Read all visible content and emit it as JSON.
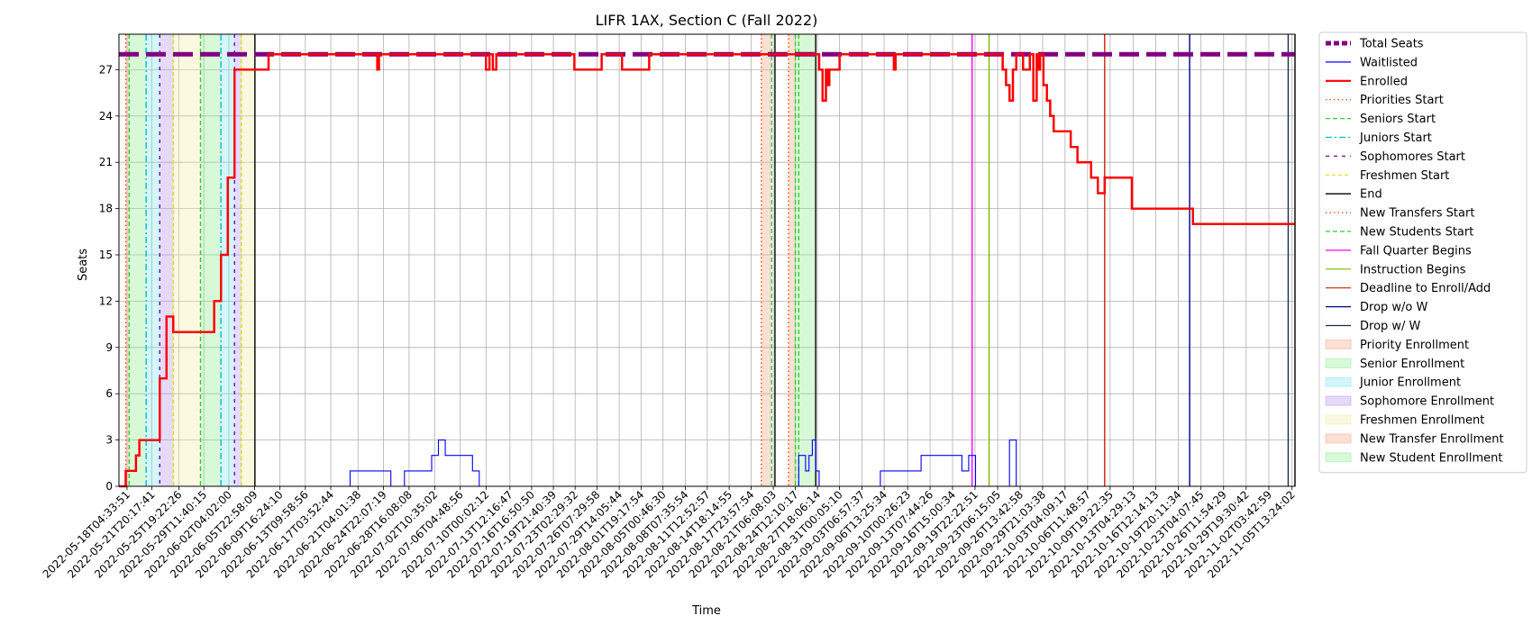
{
  "colors": {
    "total_seats": "#800080",
    "waitlisted": "#0000ff",
    "enrolled": "#ff0000",
    "priorities_start": "#ff4500",
    "seniors_start": "#32cd32",
    "juniors_start": "#00bcd4",
    "sophomores_start": "#6a0dad",
    "freshmen_start": "#dddd00",
    "end": "#000000",
    "new_transfers_start": "#ff4500",
    "new_students_start": "#32cd32",
    "fall_quarter_begins": "#ff00ff",
    "instruction_begins": "#7cba00",
    "deadline": "#cc2200",
    "drop_wo_w": "#000080",
    "drop_w_w": "#1a2a4a",
    "priority_enrollment": "#f4a582",
    "senior_enrollment": "#90ee90",
    "junior_enrollment": "#7fe5f0",
    "sophomore_enrollment": "#b794f4",
    "freshmen_enrollment": "#f0eca0",
    "new_transfer_enrollment": "#f4a582",
    "new_student_enrollment": "#90ee90"
  },
  "chart_data": {
    "type": "line",
    "title": "LIFR 1AX, Section C (Fall 2022)",
    "xlabel": "Time",
    "ylabel": "Seats",
    "x_range": [
      "2022-05-17T00:00",
      "2022-11-06T00:00"
    ],
    "ylim": [
      0,
      29.3
    ],
    "yticks": [
      0,
      3,
      6,
      9,
      12,
      15,
      18,
      21,
      24,
      27
    ],
    "grid": true,
    "legend_position": "outside-right",
    "xticks": [
      "2022-05-18T04:33:51",
      "2022-05-21T20:17:41",
      "2022-05-25T19:22:26",
      "2022-05-29T11:40:15",
      "2022-06-02T04:02:00",
      "2022-06-05T22:58:09",
      "2022-06-09T16:24:10",
      "2022-06-13T09:58:56",
      "2022-06-17T03:52:44",
      "2022-06-21T04:01:38",
      "2022-06-24T22:07:19",
      "2022-06-28T16:08:08",
      "2022-07-02T10:35:02",
      "2022-07-06T04:48:56",
      "2022-07-10T00:02:12",
      "2022-07-13T12:16:47",
      "2022-07-16T16:50:50",
      "2022-07-19T21:40:39",
      "2022-07-23T02:29:32",
      "2022-07-26T07:29:58",
      "2022-07-29T14:05:44",
      "2022-08-01T19:17:54",
      "2022-08-05T00:46:30",
      "2022-08-08T07:35:54",
      "2022-08-11T12:52:57",
      "2022-08-14T18:14:55",
      "2022-08-17T23:57:54",
      "2022-08-21T06:08:03",
      "2022-08-24T12:10:17",
      "2022-08-27T18:06:14",
      "2022-08-31T00:05:10",
      "2022-09-03T06:57:37",
      "2022-09-06T13:25:34",
      "2022-09-10T00:26:23",
      "2022-09-13T07:44:26",
      "2022-09-16T15:00:34",
      "2022-09-19T22:22:51",
      "2022-09-23T06:15:05",
      "2022-09-26T13:42:58",
      "2022-09-29T21:03:38",
      "2022-10-03T04:09:17",
      "2022-10-06T11:48:57",
      "2022-10-09T19:22:35",
      "2022-10-13T04:29:13",
      "2022-10-16T12:14:13",
      "2022-10-19T20:11:34",
      "2022-10-23T04:07:45",
      "2022-10-26T11:54:29",
      "2022-10-29T19:30:42",
      "2022-11-02T03:42:59",
      "2022-11-05T13:24:02"
    ],
    "series": [
      {
        "name": "Total Seats",
        "style": "dashed-thick",
        "color_key": "total_seats",
        "x": [
          "2022-05-17T00:00",
          "2022-11-06T00:00"
        ],
        "y": [
          28,
          28
        ]
      },
      {
        "name": "Waitlisted",
        "style": "solid-thin-step",
        "color_key": "waitlisted",
        "x": [
          "2022-05-17T00:00",
          "2022-06-20T00:00",
          "2022-06-20T00:00",
          "2022-06-26T00:00",
          "2022-06-26T00:00",
          "2022-06-28T00:00",
          "2022-06-28T00:00",
          "2022-07-02T00:00",
          "2022-07-02T00:00",
          "2022-07-03T00:00",
          "2022-07-03T00:00",
          "2022-07-04T00:00",
          "2022-07-04T00:00",
          "2022-07-08T00:00",
          "2022-07-08T00:00",
          "2022-07-09T00:00",
          "2022-07-09T00:00",
          "2022-08-19T00:00",
          "2022-08-19T00:00",
          "2022-08-25T00:00",
          "2022-08-25T00:00",
          "2022-08-26T00:00",
          "2022-08-26T00:00",
          "2022-08-26T12:00",
          "2022-08-26T12:00",
          "2022-08-27T00:00",
          "2022-08-27T00:00",
          "2022-08-27T12:00",
          "2022-08-27T12:00",
          "2022-08-28T00:00",
          "2022-08-28T00:00",
          "2022-08-28T06:00",
          "2022-08-28T06:00",
          "2022-09-06T00:00",
          "2022-09-06T00:00",
          "2022-09-11T00:00",
          "2022-09-11T00:00",
          "2022-09-12T00:00",
          "2022-09-12T00:00",
          "2022-09-18T00:00",
          "2022-09-18T00:00",
          "2022-09-19T00:00",
          "2022-09-19T00:00",
          "2022-09-20T00:00",
          "2022-09-20T00:00",
          "2022-09-25T00:00",
          "2022-09-25T00:00",
          "2022-09-26T00:00",
          "2022-09-26T00:00",
          "2022-11-06T00:00"
        ],
        "y": [
          0,
          0,
          1,
          1,
          0,
          0,
          1,
          1,
          2,
          2,
          3,
          3,
          2,
          2,
          1,
          1,
          0,
          0,
          0,
          0,
          2,
          2,
          1,
          1,
          2,
          2,
          3,
          3,
          1,
          1,
          0,
          0,
          0,
          0,
          1,
          1,
          1,
          1,
          2,
          2,
          1,
          1,
          2,
          2,
          0,
          0,
          3,
          3,
          0,
          0
        ]
      },
      {
        "name": "Enrolled",
        "style": "solid-thick-step",
        "color_key": "enrolled",
        "x": [
          "2022-05-17T00:00",
          "2022-05-18T00:00",
          "2022-05-18T00:00",
          "2022-05-19T12:00",
          "2022-05-19T12:00",
          "2022-05-20T00:00",
          "2022-05-20T00:00",
          "2022-05-21T00:00",
          "2022-05-21T00:00",
          "2022-05-22T00:00",
          "2022-05-22T00:00",
          "2022-05-23T00:00",
          "2022-05-23T00:00",
          "2022-05-24T00:00",
          "2022-05-24T00:00",
          "2022-05-25T00:00",
          "2022-05-25T00:00",
          "2022-05-30T00:00",
          "2022-05-30T00:00",
          "2022-05-31T00:00",
          "2022-05-31T00:00",
          "2022-06-01T00:00",
          "2022-06-01T00:00",
          "2022-06-02T00:00",
          "2022-06-02T00:00",
          "2022-06-03T00:00",
          "2022-06-03T00:00",
          "2022-06-08T00:00",
          "2022-06-08T00:00",
          "2022-06-24T00:00",
          "2022-06-24T00:00",
          "2022-06-24T06:00",
          "2022-06-24T06:00",
          "2022-07-10T00:00",
          "2022-07-10T00:00",
          "2022-07-10T12:00",
          "2022-07-10T12:00",
          "2022-07-11T00:00",
          "2022-07-11T00:00",
          "2022-07-11T12:00",
          "2022-07-11T12:00",
          "2022-07-23T00:00",
          "2022-07-23T00:00",
          "2022-07-27T00:00",
          "2022-07-27T00:00",
          "2022-07-30T00:00",
          "2022-07-30T00:00",
          "2022-08-03T00:00",
          "2022-08-03T00:00",
          "2022-08-28T00:00",
          "2022-08-28T00:00",
          "2022-08-28T12:00",
          "2022-08-28T12:00",
          "2022-08-29T00:00",
          "2022-08-29T00:00",
          "2022-08-29T06:00",
          "2022-08-29T06:00",
          "2022-08-29T12:00",
          "2022-08-29T12:00",
          "2022-08-31T00:00",
          "2022-08-31T00:00",
          "2022-09-08T00:00",
          "2022-09-08T00:00",
          "2022-09-08T06:00",
          "2022-09-08T06:00",
          "2022-09-24T00:00",
          "2022-09-24T00:00",
          "2022-09-24T12:00",
          "2022-09-24T12:00",
          "2022-09-25T00:00",
          "2022-09-25T00:00",
          "2022-09-25T12:00",
          "2022-09-25T12:00",
          "2022-09-26T00:00",
          "2022-09-26T00:00",
          "2022-09-27T00:00",
          "2022-09-27T00:00",
          "2022-09-28T00:00",
          "2022-09-28T00:00",
          "2022-09-28T12:00",
          "2022-09-28T12:00",
          "2022-09-29T00:00",
          "2022-09-29T00:00",
          "2022-09-29T06:00",
          "2022-09-29T06:00",
          "2022-09-29T12:00",
          "2022-09-29T12:00",
          "2022-09-30T00:00",
          "2022-09-30T00:00",
          "2022-09-30T12:00",
          "2022-09-30T12:00",
          "2022-10-01T00:00",
          "2022-10-01T00:00",
          "2022-10-01T12:00",
          "2022-10-01T12:00",
          "2022-10-04T00:00",
          "2022-10-04T00:00",
          "2022-10-05T00:00",
          "2022-10-05T00:00",
          "2022-10-07T00:00",
          "2022-10-07T00:00",
          "2022-10-08T00:00",
          "2022-10-08T00:00",
          "2022-10-09T00:00",
          "2022-10-09T00:00",
          "2022-10-13T00:00",
          "2022-10-13T00:00",
          "2022-10-22T00:00",
          "2022-10-22T00:00",
          "2022-11-06T00:00"
        ],
        "y": [
          0,
          0,
          1,
          1,
          2,
          2,
          3,
          3,
          3,
          3,
          3,
          3,
          7,
          7,
          11,
          11,
          10,
          10,
          10,
          10,
          12,
          12,
          15,
          15,
          20,
          20,
          27,
          27,
          28,
          28,
          27,
          27,
          28,
          28,
          27,
          27,
          28,
          28,
          27,
          27,
          28,
          28,
          27,
          27,
          28,
          28,
          27,
          27,
          28,
          28,
          27,
          27,
          25,
          25,
          27,
          27,
          26,
          26,
          27,
          27,
          28,
          28,
          27,
          27,
          28,
          28,
          27,
          27,
          26,
          26,
          25,
          25,
          27,
          27,
          28,
          28,
          27,
          27,
          28,
          28,
          25,
          25,
          28,
          28,
          27,
          27,
          28,
          28,
          26,
          26,
          25,
          25,
          24,
          24,
          23,
          23,
          22,
          22,
          21,
          21,
          20,
          20,
          19,
          19,
          20,
          20,
          18,
          18,
          17,
          17
        ]
      }
    ],
    "vlines": [
      {
        "name": "Priorities Start",
        "color_key": "priorities_start",
        "dash": "1.5,3",
        "at": [
          "2022-05-18T00:00",
          "2022-08-19T12:00"
        ]
      },
      {
        "name": "Seniors Start",
        "color_key": "seniors_start",
        "dash": "5,3",
        "at": [
          "2022-05-18T12:00",
          "2022-05-29T00:00",
          "2022-08-21T00:00",
          "2022-08-25T00:00"
        ]
      },
      {
        "name": "Juniors Start",
        "color_key": "juniors_start",
        "dash": "7,3,2,3",
        "at": [
          "2022-05-21T00:00",
          "2022-06-01T00:00"
        ]
      },
      {
        "name": "Sophomores Start",
        "color_key": "sophomores_start",
        "dash": "4,5",
        "at": [
          "2022-05-23T00:00",
          "2022-06-03T00:00"
        ]
      },
      {
        "name": "Freshmen Start",
        "color_key": "freshmen_start",
        "dash": "4,3",
        "at": [
          "2022-05-25T00:00",
          "2022-06-04T00:00"
        ]
      },
      {
        "name": "End",
        "color_key": "end",
        "dash": "",
        "at": [
          "2022-06-06T00:00",
          "2022-08-21T12:00",
          "2022-08-27T12:00",
          "2022-11-06T00:00"
        ]
      },
      {
        "name": "New Transfers Start",
        "color_key": "new_transfers_start",
        "dash": "1.5,3",
        "at": [
          "2022-08-23T12:00"
        ]
      },
      {
        "name": "New Students Start",
        "color_key": "new_students_start",
        "dash": "5,3",
        "at": [
          "2022-08-24T12:00"
        ]
      },
      {
        "name": "Fall Quarter Begins",
        "color_key": "fall_quarter_begins",
        "dash": "",
        "at": [
          "2022-09-19T12:00"
        ]
      },
      {
        "name": "Instruction Begins",
        "color_key": "instruction_begins",
        "dash": "",
        "at": [
          "2022-09-22T00:00"
        ]
      },
      {
        "name": "Deadline to Enroll/Add",
        "color_key": "deadline",
        "dash": "",
        "at": [
          "2022-10-09T00:00"
        ]
      },
      {
        "name": "Drop w/o W",
        "color_key": "drop_wo_w",
        "dash": "",
        "at": [
          "2022-10-21T12:00"
        ]
      },
      {
        "name": "Drop w/ W",
        "color_key": "drop_w_w",
        "dash": "",
        "at": [
          "2022-11-05T00:00"
        ]
      }
    ],
    "spans": [
      {
        "name": "Priority Enrollment",
        "color_key": "priority_enrollment",
        "ranges": [
          [
            "2022-05-18T00:00",
            "2022-05-18T12:00"
          ],
          [
            "2022-08-19T12:00",
            "2022-08-21T00:00"
          ]
        ]
      },
      {
        "name": "Senior Enrollment",
        "color_key": "senior_enrollment",
        "ranges": [
          [
            "2022-05-18T12:00",
            "2022-05-21T00:00"
          ],
          [
            "2022-05-29T00:00",
            "2022-06-01T00:00"
          ]
        ]
      },
      {
        "name": "Junior Enrollment",
        "color_key": "junior_enrollment",
        "ranges": [
          [
            "2022-05-21T00:00",
            "2022-05-23T00:00"
          ],
          [
            "2022-06-01T00:00",
            "2022-06-03T00:00"
          ]
        ]
      },
      {
        "name": "Sophomore Enrollment",
        "color_key": "sophomore_enrollment",
        "ranges": [
          [
            "2022-05-23T00:00",
            "2022-05-25T00:00"
          ],
          [
            "2022-06-03T00:00",
            "2022-06-04T00:00"
          ]
        ]
      },
      {
        "name": "Freshmen Enrollment",
        "color_key": "freshmen_enrollment",
        "ranges": [
          [
            "2022-05-25T00:00",
            "2022-05-29T00:00"
          ],
          [
            "2022-06-04T00:00",
            "2022-06-06T00:00"
          ]
        ]
      },
      {
        "name": "New Transfer Enrollment",
        "color_key": "new_transfer_enrollment",
        "ranges": [
          [
            "2022-08-23T12:00",
            "2022-08-24T12:00"
          ]
        ]
      },
      {
        "name": "New Student Enrollment",
        "color_key": "new_student_enrollment",
        "ranges": [
          [
            "2022-08-24T12:00",
            "2022-08-27T12:00"
          ]
        ]
      }
    ],
    "legend": [
      {
        "label": "Total Seats",
        "kind": "line",
        "color_key": "total_seats",
        "dash": "6,3",
        "width": 5
      },
      {
        "label": "Waitlisted",
        "kind": "line",
        "color_key": "waitlisted",
        "dash": "",
        "width": 1.2
      },
      {
        "label": "Enrolled",
        "kind": "line",
        "color_key": "enrolled",
        "dash": "",
        "width": 2.2
      },
      {
        "label": "Priorities Start",
        "kind": "line",
        "color_key": "priorities_start",
        "dash": "1.5,3",
        "width": 1.2
      },
      {
        "label": "Seniors Start",
        "kind": "line",
        "color_key": "seniors_start",
        "dash": "5,3",
        "width": 1.2
      },
      {
        "label": "Juniors Start",
        "kind": "line",
        "color_key": "juniors_start",
        "dash": "7,3,2,3",
        "width": 1.2
      },
      {
        "label": "Sophomores Start",
        "kind": "line",
        "color_key": "sophomores_start",
        "dash": "4,5",
        "width": 1.2
      },
      {
        "label": "Freshmen Start",
        "kind": "line",
        "color_key": "freshmen_start",
        "dash": "4,3",
        "width": 1.2
      },
      {
        "label": "End",
        "kind": "line",
        "color_key": "end",
        "dash": "",
        "width": 1.4
      },
      {
        "label": "New Transfers Start",
        "kind": "line",
        "color_key": "new_transfers_start",
        "dash": "1.5,3",
        "width": 1.2
      },
      {
        "label": "New Students Start",
        "kind": "line",
        "color_key": "new_students_start",
        "dash": "5,3",
        "width": 1.2
      },
      {
        "label": "Fall Quarter Begins",
        "kind": "line",
        "color_key": "fall_quarter_begins",
        "dash": "",
        "width": 1.2
      },
      {
        "label": "Instruction Begins",
        "kind": "line",
        "color_key": "instruction_begins",
        "dash": "",
        "width": 1.2
      },
      {
        "label": "Deadline to Enroll/Add",
        "kind": "line",
        "color_key": "deadline",
        "dash": "",
        "width": 1.2
      },
      {
        "label": "Drop w/o W",
        "kind": "line",
        "color_key": "drop_wo_w",
        "dash": "",
        "width": 1.2
      },
      {
        "label": "Drop w/ W",
        "kind": "line",
        "color_key": "drop_w_w",
        "dash": "",
        "width": 1.2
      },
      {
        "label": "Priority Enrollment",
        "kind": "patch",
        "color_key": "priority_enrollment"
      },
      {
        "label": "Senior Enrollment",
        "kind": "patch",
        "color_key": "senior_enrollment"
      },
      {
        "label": "Junior Enrollment",
        "kind": "patch",
        "color_key": "junior_enrollment"
      },
      {
        "label": "Sophomore Enrollment",
        "kind": "patch",
        "color_key": "sophomore_enrollment"
      },
      {
        "label": "Freshmen Enrollment",
        "kind": "patch",
        "color_key": "freshmen_enrollment"
      },
      {
        "label": "New Transfer Enrollment",
        "kind": "patch",
        "color_key": "new_transfer_enrollment"
      },
      {
        "label": "New Student Enrollment",
        "kind": "patch",
        "color_key": "new_student_enrollment"
      }
    ]
  }
}
